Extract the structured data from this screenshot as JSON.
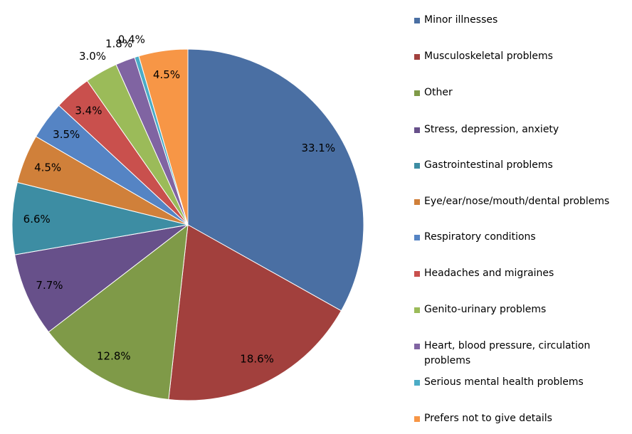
{
  "chart_data": {
    "type": "pie",
    "categories": [
      "Minor illnesses",
      "Musculoskeletal problems",
      "Other",
      "Stress, depression, anxiety",
      "Gastrointestinal problems",
      "Eye/ear/nose/mouth/dental problems",
      "Respiratory conditions",
      "Headaches and migraines",
      "Genito-urinary problems",
      "Heart, blood pressure, circulation problems",
      "Serious mental health problems",
      "Prefers not to give details"
    ],
    "values": [
      33.1,
      18.6,
      12.8,
      7.7,
      6.6,
      4.5,
      3.5,
      3.4,
      3.0,
      1.8,
      0.4,
      4.5
    ],
    "value_labels": [
      "33.1%",
      "18.6%",
      "12.8%",
      "7.7%",
      "6.6%",
      "4.5%",
      "3.5%",
      "3.4%",
      "3.0%",
      "1.8%",
      "0.4%",
      "4.5%"
    ],
    "colors": [
      "#4a6fa3",
      "#a2403d",
      "#7f9a48",
      "#67508a",
      "#3d8da3",
      "#d0803a",
      "#5584c4",
      "#c9504d",
      "#9bbb59",
      "#8064a2",
      "#4bacc6",
      "#f79646"
    ],
    "legend": "right"
  }
}
